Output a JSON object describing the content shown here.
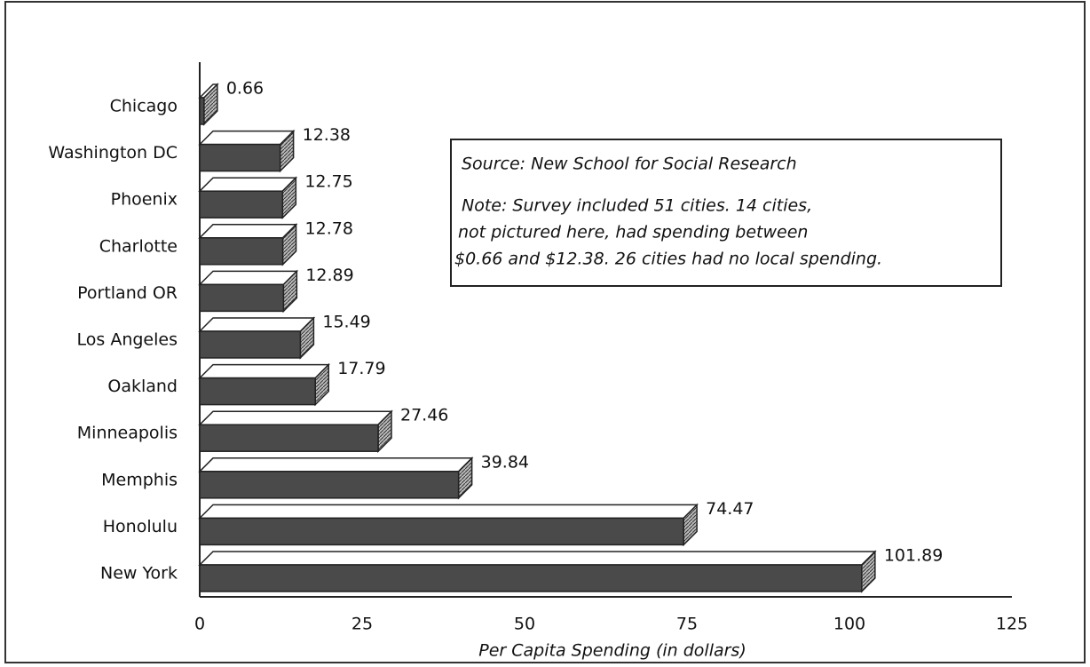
{
  "chart_data": {
    "type": "bar",
    "orientation": "horizontal",
    "categories": [
      "Chicago",
      "Washington DC",
      "Phoenix",
      "Charlotte",
      "Portland OR",
      "Los Angeles",
      "Oakland",
      "Minneapolis",
      "Memphis",
      "Honolulu",
      "New York"
    ],
    "values": [
      0.66,
      12.38,
      12.75,
      12.78,
      12.89,
      15.49,
      17.79,
      27.46,
      39.84,
      74.47,
      101.89
    ],
    "color": "#4a4a4a",
    "xlim": [
      0,
      125
    ],
    "xticks": [
      0,
      25,
      50,
      75,
      100,
      125
    ],
    "xlabel": "Per Capita Spending (in dollars)",
    "annotation": {
      "source": "Source:  New School for Social Research",
      "note": [
        "Note:  Survey included 51 cities.  14 cities,",
        " not pictured here, had spending between",
        "$0.66 and $12.38.  26 cities had no local spending."
      ]
    }
  }
}
